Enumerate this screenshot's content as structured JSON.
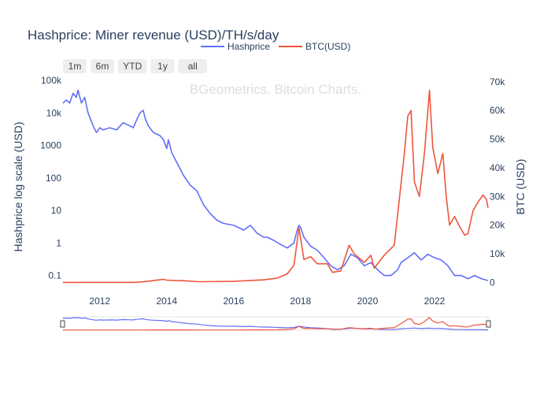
{
  "chart_data": {
    "type": "line",
    "title": "Hashprice: Miner revenue (USD)/TH/s/day",
    "watermark": "BGeometrics. Bitcoin Charts.",
    "ylabel_left": "Hashprice log scale (USD)",
    "ylabel_right": "BTC (USD)",
    "xlim": [
      2010.9,
      2023.6
    ],
    "y_left_scale": "log",
    "y_left_range": [
      0.05,
      100000
    ],
    "y_left_ticks": [
      {
        "value": 100000,
        "label": "100k"
      },
      {
        "value": 10000,
        "label": "10k"
      },
      {
        "value": 1000,
        "label": "1000"
      },
      {
        "value": 100,
        "label": "100"
      },
      {
        "value": 10,
        "label": "10"
      },
      {
        "value": 1,
        "label": "1"
      },
      {
        "value": 0.1,
        "label": "0.1"
      }
    ],
    "y_right_range": [
      -1000,
      70500
    ],
    "y_right_ticks": [
      {
        "value": 70000,
        "label": "70k"
      },
      {
        "value": 60000,
        "label": "60k"
      },
      {
        "value": 50000,
        "label": "50k"
      },
      {
        "value": 40000,
        "label": "40k"
      },
      {
        "value": 30000,
        "label": "30k"
      },
      {
        "value": 20000,
        "label": "20k"
      },
      {
        "value": 10000,
        "label": "10k"
      },
      {
        "value": 0,
        "label": "0"
      }
    ],
    "x_ticks": [
      {
        "value": 2012,
        "label": "2012"
      },
      {
        "value": 2014,
        "label": "2014"
      },
      {
        "value": 2016,
        "label": "2016"
      },
      {
        "value": 2018,
        "label": "2018"
      },
      {
        "value": 2020,
        "label": "2020"
      },
      {
        "value": 2022,
        "label": "2022"
      }
    ],
    "grid": false,
    "legend_position": "top-center",
    "range_buttons": [
      "1m",
      "6m",
      "YTD",
      "1y",
      "all"
    ],
    "series": [
      {
        "name": "Hashprice",
        "axis": "left",
        "color": "#636efa",
        "points": [
          [
            2010.9,
            20000
          ],
          [
            2011.0,
            25000
          ],
          [
            2011.1,
            20000
          ],
          [
            2011.2,
            40000
          ],
          [
            2011.3,
            30000
          ],
          [
            2011.35,
            50000
          ],
          [
            2011.45,
            20000
          ],
          [
            2011.55,
            30000
          ],
          [
            2011.65,
            10000
          ],
          [
            2011.8,
            4000
          ],
          [
            2011.9,
            2500
          ],
          [
            2012.0,
            3500
          ],
          [
            2012.1,
            3000
          ],
          [
            2012.3,
            3500
          ],
          [
            2012.5,
            3000
          ],
          [
            2012.7,
            5000
          ],
          [
            2012.9,
            4000
          ],
          [
            2013.0,
            3500
          ],
          [
            2013.1,
            6000
          ],
          [
            2013.2,
            10000
          ],
          [
            2013.3,
            12000
          ],
          [
            2013.35,
            7000
          ],
          [
            2013.45,
            4000
          ],
          [
            2013.6,
            2500
          ],
          [
            2013.8,
            2000
          ],
          [
            2013.9,
            1500
          ],
          [
            2014.0,
            800
          ],
          [
            2014.05,
            1500
          ],
          [
            2014.15,
            600
          ],
          [
            2014.3,
            300
          ],
          [
            2014.5,
            120
          ],
          [
            2014.7,
            60
          ],
          [
            2014.9,
            40
          ],
          [
            2015.1,
            15
          ],
          [
            2015.3,
            8
          ],
          [
            2015.5,
            5
          ],
          [
            2015.7,
            4
          ],
          [
            2016.0,
            3.5
          ],
          [
            2016.3,
            2.5
          ],
          [
            2016.5,
            3.5
          ],
          [
            2016.7,
            2.0
          ],
          [
            2016.9,
            1.5
          ],
          [
            2017.0,
            1.5
          ],
          [
            2017.2,
            1.2
          ],
          [
            2017.4,
            0.9
          ],
          [
            2017.6,
            0.7
          ],
          [
            2017.8,
            1.0
          ],
          [
            2017.9,
            2.5
          ],
          [
            2017.95,
            3.5
          ],
          [
            2018.0,
            3.0
          ],
          [
            2018.1,
            1.5
          ],
          [
            2018.3,
            0.8
          ],
          [
            2018.5,
            0.6
          ],
          [
            2018.7,
            0.35
          ],
          [
            2018.9,
            0.2
          ],
          [
            2019.1,
            0.15
          ],
          [
            2019.3,
            0.2
          ],
          [
            2019.5,
            0.45
          ],
          [
            2019.7,
            0.35
          ],
          [
            2019.9,
            0.2
          ],
          [
            2020.1,
            0.25
          ],
          [
            2020.3,
            0.15
          ],
          [
            2020.5,
            0.1
          ],
          [
            2020.7,
            0.1
          ],
          [
            2020.9,
            0.15
          ],
          [
            2021.0,
            0.25
          ],
          [
            2021.2,
            0.35
          ],
          [
            2021.4,
            0.5
          ],
          [
            2021.6,
            0.3
          ],
          [
            2021.8,
            0.45
          ],
          [
            2022.0,
            0.35
          ],
          [
            2022.2,
            0.3
          ],
          [
            2022.4,
            0.2
          ],
          [
            2022.6,
            0.1
          ],
          [
            2022.8,
            0.1
          ],
          [
            2023.0,
            0.08
          ],
          [
            2023.2,
            0.1
          ],
          [
            2023.4,
            0.08
          ],
          [
            2023.6,
            0.07
          ]
        ]
      },
      {
        "name": "BTC(USD)",
        "axis": "right",
        "color": "#ef553b",
        "points": [
          [
            2010.9,
            0
          ],
          [
            2011.5,
            15
          ],
          [
            2012.0,
            5
          ],
          [
            2013.0,
            13
          ],
          [
            2013.3,
            200
          ],
          [
            2013.9,
            1100
          ],
          [
            2014.0,
            800
          ],
          [
            2014.5,
            600
          ],
          [
            2015.0,
            250
          ],
          [
            2016.0,
            400
          ],
          [
            2016.9,
            900
          ],
          [
            2017.3,
            1500
          ],
          [
            2017.6,
            3000
          ],
          [
            2017.8,
            6000
          ],
          [
            2017.95,
            19000
          ],
          [
            2018.1,
            8000
          ],
          [
            2018.3,
            9000
          ],
          [
            2018.5,
            6500
          ],
          [
            2018.8,
            6500
          ],
          [
            2018.95,
            3500
          ],
          [
            2019.2,
            4000
          ],
          [
            2019.45,
            13000
          ],
          [
            2019.6,
            10000
          ],
          [
            2019.9,
            7000
          ],
          [
            2020.1,
            9500
          ],
          [
            2020.2,
            5000
          ],
          [
            2020.5,
            9500
          ],
          [
            2020.8,
            13000
          ],
          [
            2020.95,
            29000
          ],
          [
            2021.1,
            45000
          ],
          [
            2021.2,
            58000
          ],
          [
            2021.3,
            60000
          ],
          [
            2021.4,
            35000
          ],
          [
            2021.55,
            30000
          ],
          [
            2021.7,
            45000
          ],
          [
            2021.85,
            67000
          ],
          [
            2021.95,
            47000
          ],
          [
            2022.1,
            38000
          ],
          [
            2022.25,
            45000
          ],
          [
            2022.35,
            30000
          ],
          [
            2022.45,
            20000
          ],
          [
            2022.6,
            23000
          ],
          [
            2022.75,
            19500
          ],
          [
            2022.9,
            16500
          ],
          [
            2023.0,
            17000
          ],
          [
            2023.15,
            25000
          ],
          [
            2023.3,
            28000
          ],
          [
            2023.45,
            30500
          ],
          [
            2023.55,
            29000
          ],
          [
            2023.6,
            26000
          ]
        ]
      }
    ]
  }
}
